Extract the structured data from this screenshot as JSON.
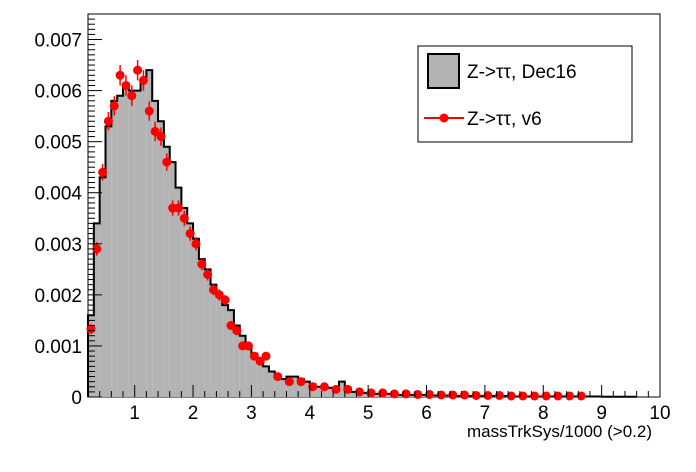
{
  "chart_data": {
    "type": "bar",
    "xlabel": "massTrkSys/1000 (>0.2)",
    "ylabel": "",
    "xlim": [
      0.2,
      10
    ],
    "ylim": [
      0,
      0.0075
    ],
    "x_ticks": [
      1,
      2,
      3,
      4,
      5,
      6,
      7,
      8,
      9,
      10
    ],
    "y_ticks": [
      0,
      0.001,
      0.002,
      0.003,
      0.004,
      0.005,
      0.006,
      0.007
    ],
    "grid": false,
    "legend_position": "top-right",
    "series": [
      {
        "name": "Z->ττ, Dec16",
        "style": "filled-histogram",
        "color": "#b3b3b3",
        "bin_width": 0.1,
        "x": [
          0.2,
          0.3,
          0.4,
          0.5,
          0.6,
          0.7,
          0.8,
          0.9,
          1.0,
          1.1,
          1.2,
          1.3,
          1.4,
          1.5,
          1.6,
          1.7,
          1.8,
          1.9,
          2.0,
          2.1,
          2.2,
          2.3,
          2.4,
          2.5,
          2.6,
          2.7,
          2.8,
          2.9,
          3.0,
          3.1,
          3.2,
          3.3,
          3.4,
          3.5,
          3.6,
          3.7,
          3.8,
          3.9,
          4.0,
          4.1,
          4.2,
          4.3,
          4.4,
          4.5,
          4.6,
          4.7,
          4.8,
          4.9,
          5.0,
          5.5,
          6.0,
          6.5,
          7.0,
          7.5,
          8.0,
          8.5,
          9.0,
          9.5
        ],
        "values": [
          0.0016,
          0.0034,
          0.0043,
          0.0053,
          0.0058,
          0.0059,
          0.0061,
          0.006,
          0.006,
          0.0062,
          0.0064,
          0.0058,
          0.0054,
          0.0049,
          0.0046,
          0.0041,
          0.0037,
          0.0034,
          0.0031,
          0.0027,
          0.0025,
          0.0022,
          0.002,
          0.0018,
          0.0017,
          0.0014,
          0.0012,
          0.001,
          0.00085,
          0.0007,
          0.0006,
          0.0005,
          0.0004,
          0.00035,
          0.0004,
          0.0004,
          0.00035,
          0.0003,
          0.00025,
          0.0002,
          0.0002,
          0.00018,
          0.00015,
          0.0003,
          0.00015,
          0.0001,
          0.0001,
          8e-05,
          6e-05,
          4e-05,
          3e-05,
          2e-05,
          2e-05,
          1e-05,
          1e-05,
          1e-05,
          5e-06,
          5e-06
        ]
      },
      {
        "name": "Z->ττ, v6",
        "style": "markers-with-error-bars",
        "color": "#ff0000",
        "x": [
          0.25,
          0.35,
          0.45,
          0.55,
          0.65,
          0.75,
          0.85,
          0.95,
          1.05,
          1.15,
          1.25,
          1.35,
          1.45,
          1.55,
          1.65,
          1.75,
          1.85,
          1.95,
          2.05,
          2.15,
          2.25,
          2.35,
          2.45,
          2.55,
          2.65,
          2.75,
          2.85,
          2.95,
          3.05,
          3.15,
          3.25,
          3.45,
          3.65,
          3.85,
          4.05,
          4.25,
          4.45,
          4.65,
          4.85,
          5.05,
          5.25,
          5.45,
          5.65,
          5.85,
          6.05,
          6.25,
          6.45,
          6.65,
          6.85,
          7.05,
          7.25,
          7.45,
          7.65,
          7.85,
          8.05,
          8.25,
          8.45,
          8.65
        ],
        "values": [
          0.00133,
          0.0029,
          0.0044,
          0.0054,
          0.0057,
          0.0063,
          0.0061,
          0.0059,
          0.0064,
          0.0062,
          0.0056,
          0.0052,
          0.0051,
          0.0046,
          0.0037,
          0.0037,
          0.0035,
          0.0032,
          0.003,
          0.0026,
          0.0024,
          0.0021,
          0.002,
          0.0019,
          0.0014,
          0.0013,
          0.001,
          0.001,
          0.0008,
          0.0007,
          0.0008,
          0.0004,
          0.0003,
          0.0003,
          0.0002,
          0.0002,
          0.00015,
          0.00015,
          0.0001,
          8e-05,
          8e-05,
          6e-05,
          6e-05,
          5e-05,
          5e-05,
          4e-05,
          4e-05,
          4e-05,
          3e-05,
          3e-05,
          3e-05,
          2e-05,
          2e-05,
          2e-05,
          2e-05,
          2e-05,
          2e-05,
          2e-05
        ],
        "errors": [
          0.0001,
          0.00013,
          0.00016,
          0.00018,
          0.00019,
          0.0002,
          0.0002,
          0.0002,
          0.0002,
          0.0002,
          0.00019,
          0.00019,
          0.00018,
          0.00017,
          0.00015,
          0.00015,
          0.00015,
          0.00014,
          0.00013,
          0.00012,
          0.00012,
          0.00011,
          0.00011,
          0.0001,
          9e-05,
          9e-05,
          8e-05,
          8e-05,
          7e-05,
          7e-05,
          7e-05,
          5e-05,
          4e-05,
          4e-05,
          3e-05,
          3e-05,
          3e-05,
          3e-05,
          2e-05,
          2e-05,
          2e-05,
          2e-05,
          2e-05,
          2e-05,
          2e-05,
          2e-05,
          2e-05,
          2e-05,
          2e-05,
          2e-05,
          2e-05,
          1e-05,
          1e-05,
          1e-05,
          1e-05,
          1e-05,
          1e-05,
          1e-05
        ]
      }
    ]
  }
}
